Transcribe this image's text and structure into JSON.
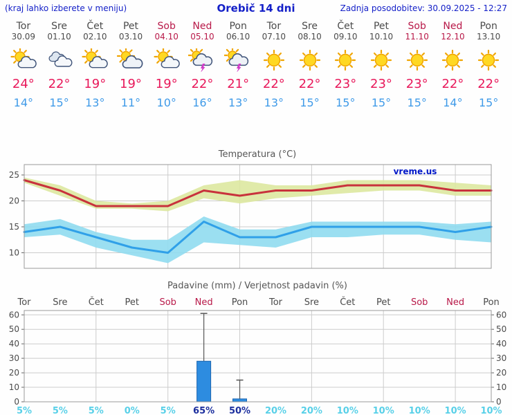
{
  "header": {
    "hint": "(kraj lahko izberete v meniju)",
    "title": "Orebič 14 dni",
    "updated": "Zadnja posodobitev: 30.09.2025 - 12:27"
  },
  "watermark": "vreme.us",
  "colors": {
    "header_blue": "#1420c8",
    "weekend_red": "#b81848",
    "weekday_gray": "#4a4a4a",
    "high_temp": "#e8185a",
    "low_temp": "#3f9ae8",
    "max_line": "#c8323c",
    "max_band": "#dde8a0",
    "min_line": "#30a0e8",
    "min_band": "#90dcf0",
    "bar_blue": "#2d8ce0",
    "bar_border": "#1d66b0",
    "prob_low": "#58d0e8",
    "prob_high": "#1c2f9e",
    "grid": "#cccccc",
    "axis_text": "#4a4a4a",
    "chart_title": "#555555",
    "watermark_blue": "#0018c8"
  },
  "days": [
    {
      "name": "Tor",
      "date": "30.09",
      "weekend": false,
      "icon": "sun-cloud-icon",
      "high": "24°",
      "low": "14°"
    },
    {
      "name": "Sre",
      "date": "01.10",
      "weekend": false,
      "icon": "clouds-icon",
      "high": "22°",
      "low": "15°"
    },
    {
      "name": "Čet",
      "date": "02.10",
      "weekend": false,
      "icon": "sun-cloud-icon",
      "high": "19°",
      "low": "13°"
    },
    {
      "name": "Pet",
      "date": "03.10",
      "weekend": false,
      "icon": "cloud-sun-icon",
      "high": "19°",
      "low": "11°"
    },
    {
      "name": "Sob",
      "date": "04.10",
      "weekend": true,
      "icon": "sun-cloud-icon",
      "high": "19°",
      "low": "10°"
    },
    {
      "name": "Ned",
      "date": "05.10",
      "weekend": true,
      "icon": "thunder-icon",
      "high": "22°",
      "low": "16°"
    },
    {
      "name": "Pon",
      "date": "06.10",
      "weekend": false,
      "icon": "thunder-icon",
      "high": "21°",
      "low": "13°"
    },
    {
      "name": "Tor",
      "date": "07.10",
      "weekend": false,
      "icon": "sun-icon",
      "high": "22°",
      "low": "13°"
    },
    {
      "name": "Sre",
      "date": "08.10",
      "weekend": false,
      "icon": "sun-icon",
      "high": "22°",
      "low": "15°"
    },
    {
      "name": "Čet",
      "date": "09.10",
      "weekend": false,
      "icon": "sun-icon",
      "high": "23°",
      "low": "15°"
    },
    {
      "name": "Pet",
      "date": "10.10",
      "weekend": false,
      "icon": "sun-icon",
      "high": "23°",
      "low": "15°"
    },
    {
      "name": "Sob",
      "date": "11.10",
      "weekend": true,
      "icon": "sun-icon",
      "high": "23°",
      "low": "15°"
    },
    {
      "name": "Ned",
      "date": "12.10",
      "weekend": true,
      "icon": "sun-icon",
      "high": "22°",
      "low": "14°"
    },
    {
      "name": "Pon",
      "date": "13.10",
      "weekend": false,
      "icon": "sun-icon",
      "high": "22°",
      "low": "15°"
    }
  ],
  "chart_data": [
    {
      "type": "line",
      "title": "Temperatura (°C)",
      "ylim": [
        7,
        27
      ],
      "yticks": [
        10,
        15,
        20,
        25
      ],
      "x_labels": [
        "Tor 30.09",
        "Sre 01.10",
        "Čet 02.10",
        "Pet 03.10",
        "Sob 04.10",
        "Ned 05.10",
        "Pon 06.10",
        "Tor 07.10",
        "Sre 08.10",
        "Čet 09.10",
        "Pet 10.10",
        "Sob 11.10",
        "Ned 12.10",
        "Pon 13.10"
      ],
      "grid": true,
      "series": [
        {
          "name": "max temperature",
          "color_key": "max_line",
          "band_key": "max_band",
          "values": [
            24,
            22,
            19,
            19,
            19,
            22,
            21,
            22,
            22,
            23,
            23,
            23,
            22,
            22
          ],
          "band_low": [
            23.5,
            21,
            18.5,
            18.5,
            18,
            20.5,
            19.5,
            20.5,
            21,
            21.5,
            22,
            22,
            21,
            21
          ],
          "band_high": [
            24.5,
            23,
            20,
            19.5,
            20,
            23,
            24,
            23,
            23,
            24,
            24,
            24,
            23.5,
            23
          ]
        },
        {
          "name": "min temperature",
          "color_key": "min_line",
          "band_key": "min_band",
          "values": [
            14,
            15,
            13,
            11,
            10,
            16,
            13,
            13,
            15,
            15,
            15,
            15,
            14,
            15
          ],
          "band_low": [
            13,
            13.5,
            11,
            9.5,
            8,
            12,
            11.5,
            11,
            13,
            13,
            13.5,
            13.5,
            12.5,
            12
          ],
          "band_high": [
            15.5,
            16.5,
            14,
            12.5,
            12.5,
            17,
            14.5,
            14.5,
            16,
            16,
            16,
            16,
            15.5,
            16
          ]
        }
      ]
    },
    {
      "type": "bar",
      "title": "Padavine (mm) / Verjetnost padavin (%)",
      "ylim": [
        0,
        63
      ],
      "yticks": [
        0,
        10,
        20,
        30,
        40,
        50,
        60
      ],
      "day_labels": [
        {
          "label": "Tor",
          "weekend": false
        },
        {
          "label": "Sre",
          "weekend": false
        },
        {
          "label": "Čet",
          "weekend": false
        },
        {
          "label": "Pet",
          "weekend": false
        },
        {
          "label": "Sob",
          "weekend": true
        },
        {
          "label": "Ned",
          "weekend": true
        },
        {
          "label": "Pon",
          "weekend": false
        },
        {
          "label": "Tor",
          "weekend": false
        },
        {
          "label": "Sre",
          "weekend": false
        },
        {
          "label": "Čet",
          "weekend": false
        },
        {
          "label": "Pet",
          "weekend": false
        },
        {
          "label": "Sob",
          "weekend": true
        },
        {
          "label": "Ned",
          "weekend": true
        },
        {
          "label": "Pon",
          "weekend": false
        }
      ],
      "values": [
        0,
        0,
        0,
        0,
        0,
        28,
        2,
        0,
        0,
        0,
        0,
        0,
        0,
        0
      ],
      "whisker_high": [
        0,
        0,
        0,
        0,
        0,
        61,
        15,
        0,
        0,
        0,
        0,
        0,
        0,
        0
      ],
      "probabilities": [
        {
          "label": "5%",
          "emph": false
        },
        {
          "label": "5%",
          "emph": false
        },
        {
          "label": "5%",
          "emph": false
        },
        {
          "label": "0%",
          "emph": false
        },
        {
          "label": "5%",
          "emph": false
        },
        {
          "label": "65%",
          "emph": true
        },
        {
          "label": "50%",
          "emph": true
        },
        {
          "label": "20%",
          "emph": false
        },
        {
          "label": "20%",
          "emph": false
        },
        {
          "label": "10%",
          "emph": false
        },
        {
          "label": "10%",
          "emph": false
        },
        {
          "label": "10%",
          "emph": false
        },
        {
          "label": "10%",
          "emph": false
        },
        {
          "label": "10%",
          "emph": false
        }
      ]
    }
  ]
}
